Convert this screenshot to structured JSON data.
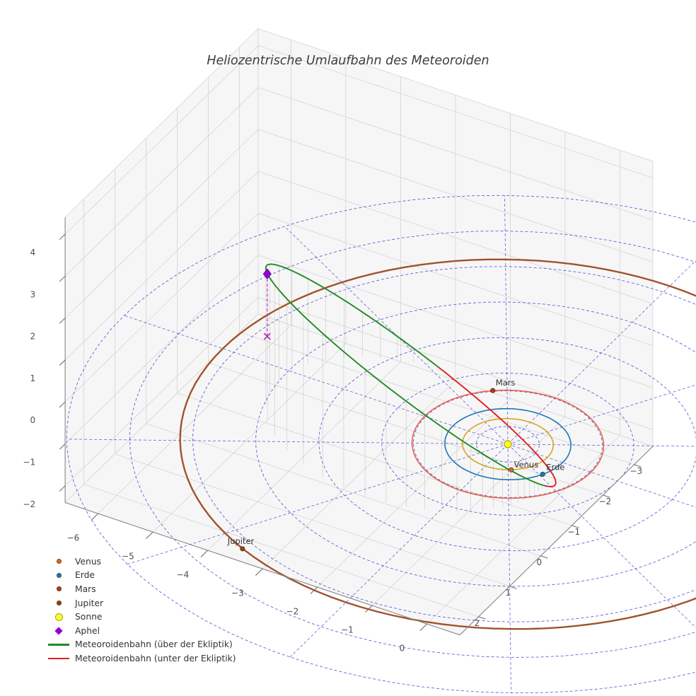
{
  "chart_data": {
    "type": "line",
    "projection": "3d",
    "title": "Heliozentrische Umlaufbahn des Meteoroiden",
    "axes": {
      "x": {
        "ticks": [
          -6,
          -5,
          -4,
          -3,
          -2,
          -1,
          0
        ],
        "range": [
          -6.6,
          0.6
        ]
      },
      "y": {
        "ticks": [
          -3,
          -2,
          -1,
          0,
          1,
          2
        ],
        "range": [
          -3.6,
          2.6
        ]
      },
      "z": {
        "ticks": [
          -2,
          -1,
          0,
          1,
          2,
          3,
          4
        ],
        "range": [
          -2.4,
          4.4
        ]
      },
      "grid": true
    },
    "polar_grid": {
      "radii": [
        0.5,
        1,
        1.5,
        2,
        3,
        4,
        5,
        6,
        7
      ],
      "spoke_angles_deg": [
        0,
        30,
        60,
        90,
        120,
        150,
        180,
        210,
        240,
        270,
        300,
        330
      ],
      "color": "#3c3cd0",
      "style": "dashed"
    },
    "sun": {
      "label": "Sonne",
      "position": [
        0,
        0,
        0
      ],
      "color": "#ffff33",
      "edge_color": "#b0b000"
    },
    "planets": [
      {
        "label": "Venus",
        "orbit_radius_au": 0.72,
        "position": [
          0.4,
          0.6,
          0
        ],
        "orbit_color": "#DAA520",
        "marker_color": "#d2691e"
      },
      {
        "label": "Erde",
        "orbit_radius_au": 1.0,
        "position": [
          0.89,
          0.45,
          0
        ],
        "orbit_color": "#1f77b4",
        "marker_color": "#1f77b4"
      },
      {
        "label": "Mars",
        "orbit_radius_au": 1.52,
        "position": [
          -0.95,
          -1.19,
          0
        ],
        "orbit_color": "#ef6548",
        "marker_color": "#b03a2e"
      },
      {
        "label": "Jupiter",
        "orbit_radius_au": 5.2,
        "position": [
          -2.15,
          4.74,
          0
        ],
        "orbit_color": "#A0522D",
        "marker_color": "#8B4513"
      }
    ],
    "meteoroid_orbit": {
      "perihelion_au": 1.0,
      "aphelion_au": 5.2,
      "perihelion_dir": [
        0.692,
        -0.2665,
        -0.671
      ],
      "inplane_dir": [
        0.5953,
        0.7362,
        0.3218
      ],
      "above_color": "#228B22",
      "below_color": "#e02020",
      "above_label": "Meteoroidenbahn (über der Ekliptik)",
      "below_label": "Meteoroidenbahn (unter der Ekliptik)"
    },
    "aphelion": {
      "label": "Aphel",
      "position": [
        -3.6,
        1.39,
        3.49
      ],
      "color": "#9400D3"
    },
    "aphelion_drop_marker": {
      "position": [
        -3.6,
        1.39,
        2.0
      ],
      "color": "#bb33bb"
    },
    "stems": {
      "from_deg": 70,
      "to_deg": 250,
      "step_deg": 5,
      "color": "#888888"
    },
    "legend": [
      {
        "label": "Venus",
        "marker": "dot",
        "color": "#d2691e"
      },
      {
        "label": "Erde",
        "marker": "dot",
        "color": "#1f77b4"
      },
      {
        "label": "Mars",
        "marker": "dot",
        "color": "#b03a2e"
      },
      {
        "label": "Jupiter",
        "marker": "dot",
        "color": "#8B4513"
      },
      {
        "label": "Sonne",
        "marker": "circle",
        "color": "#ffff33"
      },
      {
        "label": "Aphel",
        "marker": "diamond",
        "color": "#9400D3"
      },
      {
        "label": "Meteoroidenbahn (über der Ekliptik)",
        "marker": "line",
        "color": "#228B22"
      },
      {
        "label": "Meteoroidenbahn (unter der Ekliptik)",
        "marker": "line",
        "color": "#e02020"
      }
    ]
  }
}
